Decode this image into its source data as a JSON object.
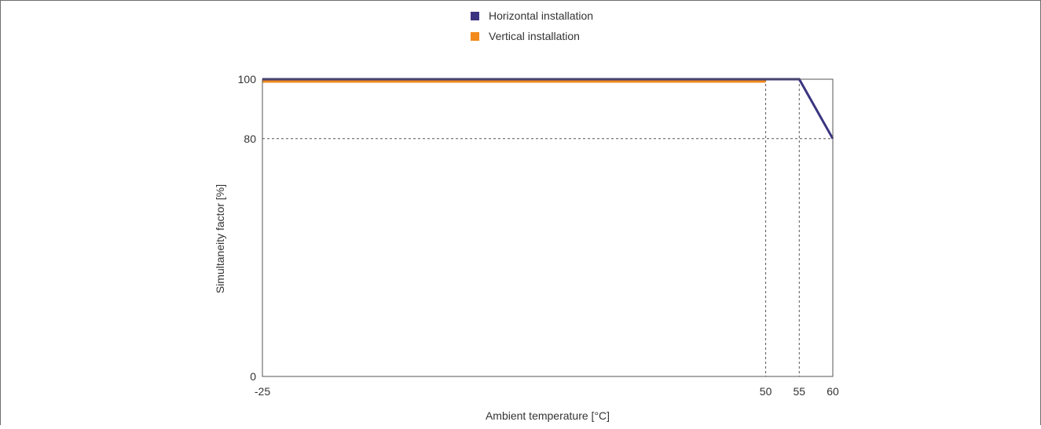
{
  "chart_data": {
    "type": "line",
    "title": "",
    "xlabel": "Ambient temperature [°C]",
    "ylabel": "Simultaneity factor [%]",
    "xlim": [
      -25,
      60
    ],
    "ylim": [
      0,
      100
    ],
    "x_ticks": [
      -25,
      50,
      55,
      60
    ],
    "y_ticks": [
      0,
      80,
      100
    ],
    "grid": "dashed reference lines at x=50, x=55, y=80",
    "legend_position": "top-center",
    "series": [
      {
        "name": "Horizontal installation",
        "color": "#3a3480",
        "x": [
          -25,
          55,
          60
        ],
        "y": [
          100,
          100,
          80
        ]
      },
      {
        "name": "Vertical installation",
        "color": "#f28a1d",
        "x": [
          -25,
          50
        ],
        "y": [
          100,
          100
        ]
      }
    ]
  }
}
